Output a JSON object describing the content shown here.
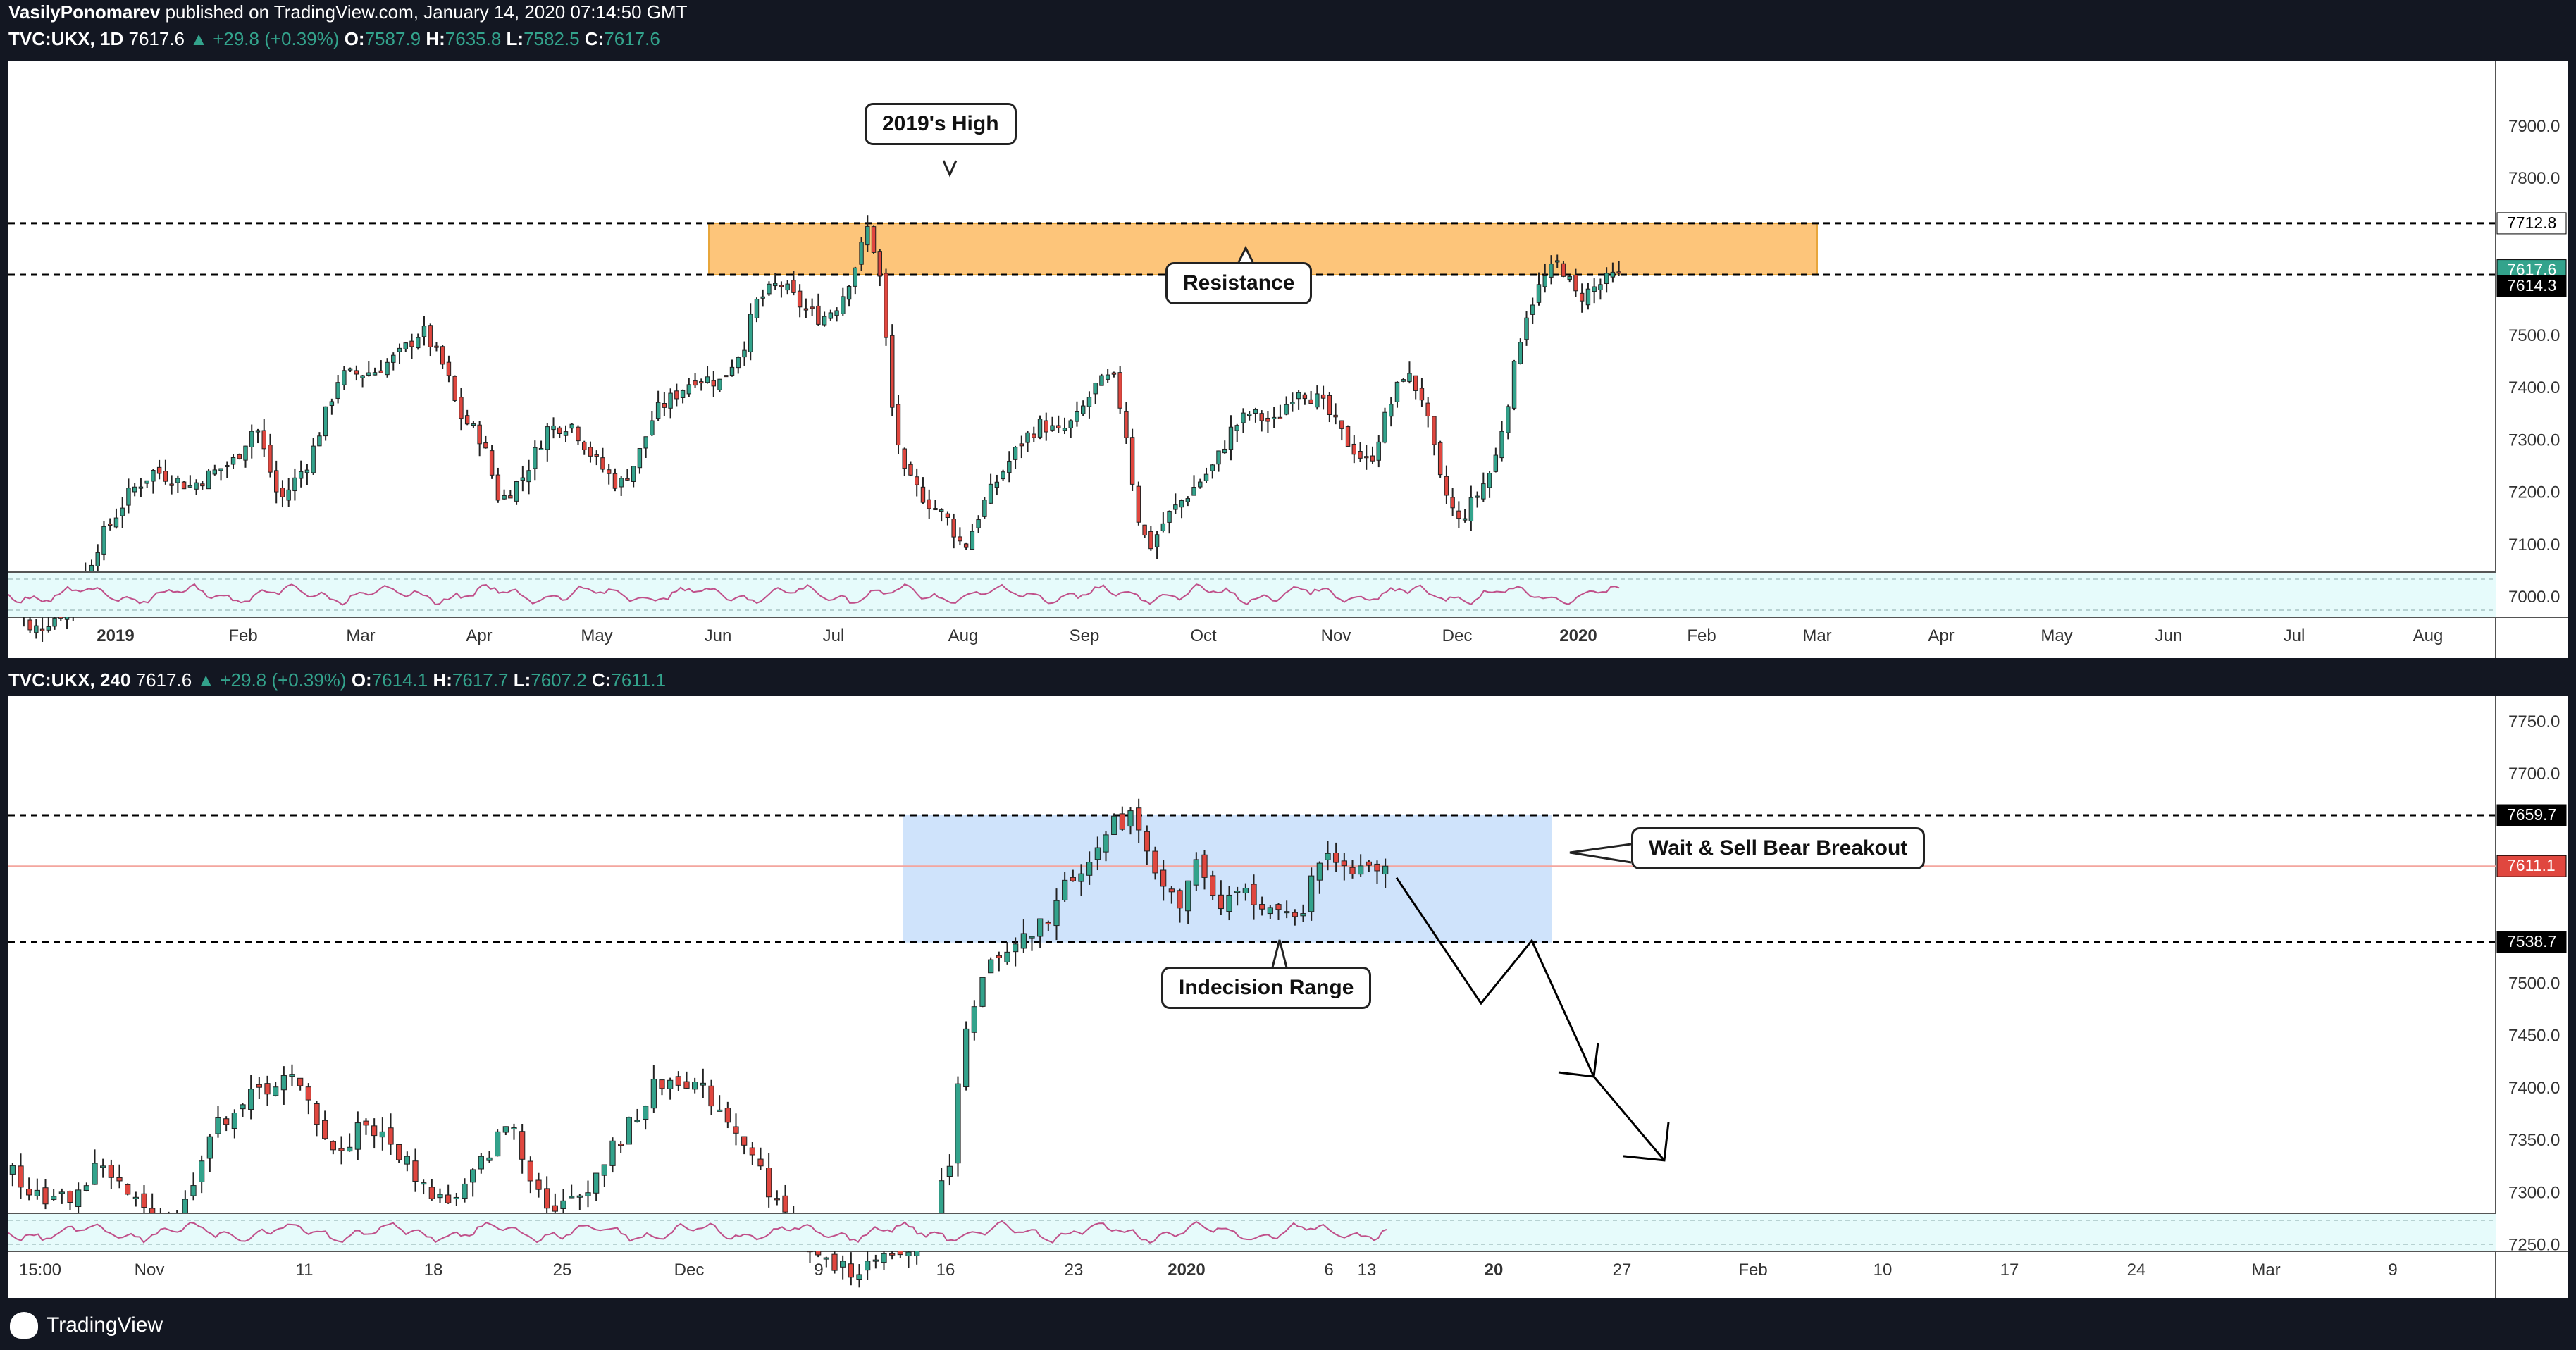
{
  "publisher": {
    "author": "VasilyPonomarev",
    "text": "published on TradingView.com, January 14, 2020 07:14:50 GMT"
  },
  "top_header": {
    "symbol": "TVC:UKX, 1D",
    "last": "7617.6",
    "change": "▲ +29.8 (+0.39%)",
    "o_label": "O:",
    "o": "7587.9",
    "h_label": "H:",
    "h": "7635.8",
    "l_label": "L:",
    "l": "7582.5",
    "c_label": "C:",
    "c": "7617.6"
  },
  "bottom_header": {
    "symbol": "TVC:UKX, 240",
    "last": "7617.6",
    "change": "▲ +29.8 (+0.39%)",
    "o_label": "O:",
    "o": "7614.1",
    "h_label": "H:",
    "h": "7617.7",
    "l_label": "L:",
    "l": "7607.2",
    "c_label": "C:",
    "c": "7611.1"
  },
  "annotations": {
    "top_high": "2019's High",
    "top_resistance": "Resistance",
    "bottom_breakout": "Wait & Sell Bear Breakout",
    "bottom_range": "Indecision Range"
  },
  "colors": {
    "up": "#33a38c",
    "down": "#e0473f",
    "zone_orange": "#fdc57a",
    "zone_blue": "#cfe3fb",
    "rsi_bg": "#e6fbfb",
    "rsi_line": "#c0508a"
  },
  "footer": {
    "brand": "TradingView",
    "logo_icon": "tradingview-logo-icon"
  },
  "chart_data": [
    {
      "type": "candlestick",
      "timeframe": "1D",
      "x_labels": [
        "2019",
        "Feb",
        "Mar",
        "Apr",
        "May",
        "Jun",
        "Jul",
        "Aug",
        "Sep",
        "Oct",
        "Nov",
        "Dec",
        "2020",
        "Feb",
        "Mar",
        "Apr",
        "May",
        "Jun",
        "Jul",
        "Aug"
      ],
      "y_ticks": [
        7900.0,
        7800.0,
        7500.0,
        7400.0,
        7300.0,
        7200.0,
        7100.0,
        7000.0
      ],
      "ylim": [
        6930,
        7970
      ],
      "price_badges": [
        {
          "value": "7712.8",
          "bg": "#ffffff",
          "fg": "#000000"
        },
        {
          "value": "7617.6",
          "bg": "#33a38c",
          "fg": "#ffffff"
        },
        {
          "value": "7614.3",
          "bg": "#000000",
          "fg": "#ffffff"
        }
      ],
      "levels": [
        7712.8,
        7614.3
      ],
      "resistance_zone": [
        7614.3,
        7712.8
      ],
      "close_path": [
        [
          0,
          7020
        ],
        [
          6,
          6930
        ],
        [
          20,
          6980
        ],
        [
          30,
          7110
        ],
        [
          40,
          7200
        ],
        [
          48,
          7240
        ],
        [
          60,
          7210
        ],
        [
          75,
          7260
        ],
        [
          82,
          7330
        ],
        [
          90,
          7180
        ],
        [
          100,
          7260
        ],
        [
          110,
          7420
        ],
        [
          122,
          7430
        ],
        [
          130,
          7460
        ],
        [
          138,
          7510
        ],
        [
          146,
          7430
        ],
        [
          150,
          7350
        ],
        [
          158,
          7300
        ],
        [
          164,
          7180
        ],
        [
          172,
          7230
        ],
        [
          180,
          7320
        ],
        [
          188,
          7330
        ],
        [
          196,
          7260
        ],
        [
          204,
          7210
        ],
        [
          210,
          7260
        ],
        [
          216,
          7350
        ],
        [
          224,
          7390
        ],
        [
          230,
          7420
        ],
        [
          238,
          7410
        ],
        [
          246,
          7480
        ],
        [
          250,
          7560
        ],
        [
          258,
          7600
        ],
        [
          266,
          7550
        ],
        [
          272,
          7530
        ],
        [
          278,
          7560
        ],
        [
          284,
          7640
        ],
        [
          288,
          7710
        ],
        [
          292,
          7600
        ],
        [
          296,
          7350
        ],
        [
          300,
          7230
        ],
        [
          308,
          7180
        ],
        [
          314,
          7150
        ],
        [
          320,
          7090
        ],
        [
          326,
          7170
        ],
        [
          332,
          7230
        ],
        [
          340,
          7300
        ],
        [
          346,
          7330
        ],
        [
          352,
          7310
        ],
        [
          358,
          7340
        ],
        [
          364,
          7400
        ],
        [
          370,
          7420
        ],
        [
          374,
          7330
        ],
        [
          378,
          7160
        ],
        [
          382,
          7090
        ],
        [
          388,
          7150
        ],
        [
          396,
          7200
        ],
        [
          404,
          7250
        ],
        [
          410,
          7320
        ],
        [
          416,
          7350
        ],
        [
          424,
          7330
        ],
        [
          432,
          7400
        ],
        [
          440,
          7370
        ],
        [
          448,
          7300
        ],
        [
          456,
          7250
        ],
        [
          462,
          7350
        ],
        [
          468,
          7430
        ],
        [
          474,
          7380
        ],
        [
          480,
          7220
        ],
        [
          486,
          7140
        ],
        [
          492,
          7190
        ],
        [
          498,
          7250
        ],
        [
          504,
          7410
        ],
        [
          508,
          7530
        ],
        [
          514,
          7600
        ],
        [
          520,
          7640
        ],
        [
          526,
          7570
        ],
        [
          532,
          7590
        ],
        [
          540,
          7617.6
        ]
      ]
    },
    {
      "type": "candlestick",
      "timeframe": "240",
      "x_labels": [
        "15:00",
        "Nov",
        "11",
        "18",
        "25",
        "Dec",
        "9",
        "16",
        "23",
        "2020",
        "6",
        "13",
        "20",
        "27",
        "Feb",
        "10",
        "17",
        "24",
        "Mar",
        "9"
      ],
      "y_ticks": [
        7750.0,
        7700.0,
        7500.0,
        7450.0,
        7400.0,
        7350.0,
        7300.0,
        7250.0
      ],
      "ylim": [
        7235,
        7760
      ],
      "price_badges": [
        {
          "value": "7659.7",
          "bg": "#000000",
          "fg": "#ffffff"
        },
        {
          "value": "7611.1",
          "bg": "#e0473f",
          "fg": "#ffffff"
        },
        {
          "value": "7538.7",
          "bg": "#000000",
          "fg": "#ffffff"
        }
      ],
      "levels": [
        7659.7,
        7538.7
      ],
      "range_zone": [
        7538.7,
        7659.7
      ],
      "current_line": 7611.1,
      "projection": [
        [
          0,
          7600
        ],
        [
          1,
          7480
        ],
        [
          2,
          7540
        ],
        [
          3,
          7410
        ],
        [
          4,
          7330
        ]
      ],
      "close_path": [
        [
          0,
          7320
        ],
        [
          8,
          7300
        ],
        [
          16,
          7290
        ],
        [
          24,
          7300
        ],
        [
          32,
          7330
        ],
        [
          40,
          7300
        ],
        [
          50,
          7275
        ],
        [
          60,
          7270
        ],
        [
          70,
          7350
        ],
        [
          80,
          7380
        ],
        [
          92,
          7400
        ],
        [
          100,
          7410
        ],
        [
          108,
          7380
        ],
        [
          118,
          7330
        ],
        [
          126,
          7370
        ],
        [
          134,
          7350
        ],
        [
          142,
          7330
        ],
        [
          150,
          7300
        ],
        [
          160,
          7290
        ],
        [
          170,
          7330
        ],
        [
          180,
          7370
        ],
        [
          188,
          7310
        ],
        [
          196,
          7280
        ],
        [
          206,
          7300
        ],
        [
          214,
          7330
        ],
        [
          222,
          7360
        ],
        [
          232,
          7400
        ],
        [
          242,
          7410
        ],
        [
          252,
          7390
        ],
        [
          262,
          7360
        ],
        [
          270,
          7320
        ],
        [
          278,
          7280
        ],
        [
          288,
          7240
        ],
        [
          300,
          7225
        ],
        [
          312,
          7230
        ],
        [
          322,
          7240
        ],
        [
          330,
          7260
        ],
        [
          338,
          7320
        ],
        [
          344,
          7450
        ],
        [
          350,
          7510
        ],
        [
          358,
          7520
        ],
        [
          366,
          7540
        ],
        [
          374,
          7560
        ],
        [
          382,
          7600
        ],
        [
          390,
          7620
        ],
        [
          398,
          7650
        ],
        [
          404,
          7660
        ],
        [
          410,
          7630
        ],
        [
          416,
          7590
        ],
        [
          422,
          7570
        ],
        [
          428,
          7620
        ],
        [
          436,
          7560
        ],
        [
          442,
          7590
        ],
        [
          450,
          7580
        ],
        [
          458,
          7560
        ],
        [
          466,
          7570
        ],
        [
          474,
          7630
        ],
        [
          482,
          7610
        ],
        [
          490,
          7615
        ],
        [
          496,
          7611.1
        ]
      ]
    }
  ]
}
